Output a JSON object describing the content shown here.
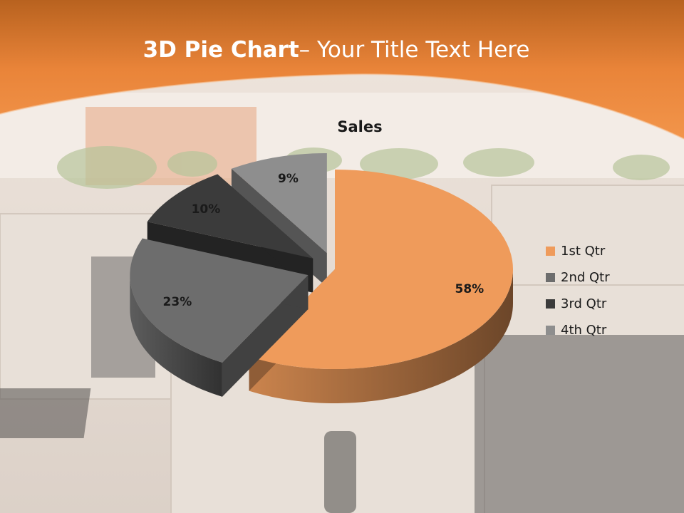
{
  "slide": {
    "title_bold": "3D Pie Chart",
    "title_rest": "– Your Title Text Here"
  },
  "colors": {
    "header": "#ef8a3f",
    "header_dark": "#c9641f",
    "slice_colors": [
      "#ef9b5b",
      "#6d6d6d",
      "#3b3b3b",
      "#8e8e8e"
    ]
  },
  "chart_data": {
    "type": "pie",
    "title": "Sales",
    "categories": [
      "1st Qtr",
      "2nd Qtr",
      "3rd Qtr",
      "4th Qtr"
    ],
    "values": [
      58,
      23,
      10,
      9
    ],
    "data_labels": [
      "58%",
      "23%",
      "10%",
      "9%"
    ],
    "exploded": [
      false,
      true,
      true,
      true
    ],
    "style": "3d",
    "legend_position": "right"
  }
}
